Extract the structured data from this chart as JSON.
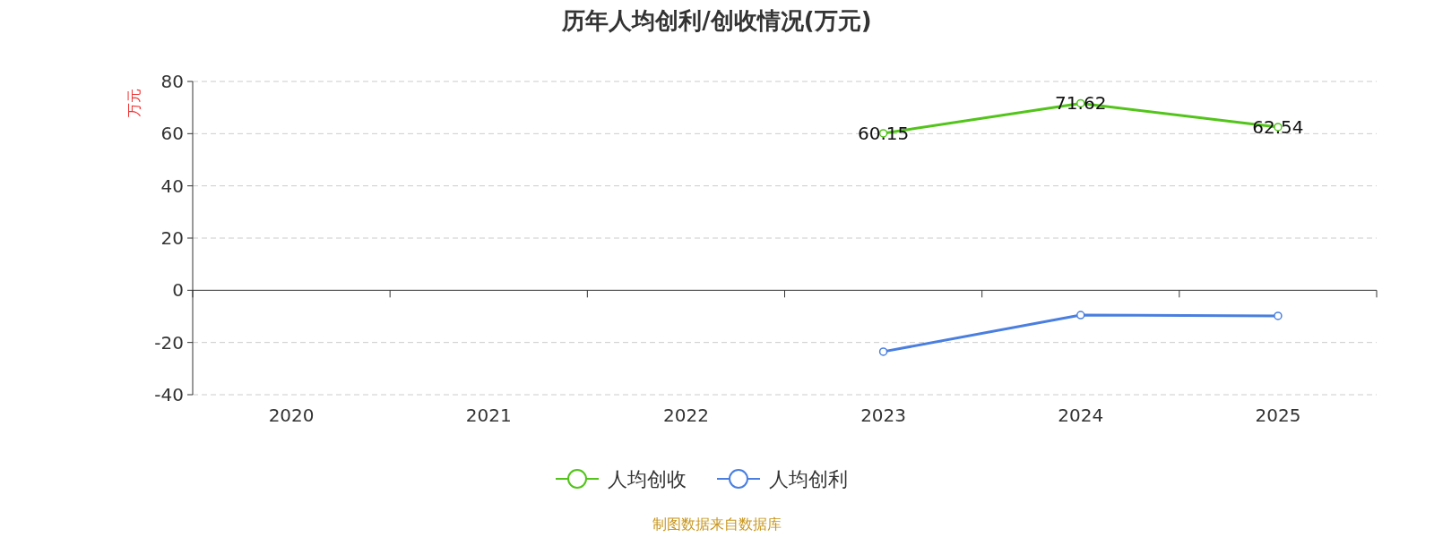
{
  "chart_data": {
    "type": "line",
    "title": "历年人均创利/创收情况(万元)",
    "ylabel": "万元",
    "categories": [
      "2020",
      "2021",
      "2022",
      "2023",
      "2024",
      "2025"
    ],
    "series": [
      {
        "name": "人均创收",
        "color": "#52c41a",
        "values": [
          null,
          null,
          null,
          60.15,
          71.62,
          62.54
        ],
        "value_labels": [
          null,
          null,
          null,
          "60.15",
          "71.62",
          "62.54"
        ]
      },
      {
        "name": "人均创利",
        "color": "#4a7fdf",
        "values": [
          null,
          null,
          null,
          -23.5,
          -9.5,
          -9.8
        ]
      }
    ],
    "ylim": [
      -40,
      80
    ],
    "yticks": [
      -40,
      -20,
      0,
      20,
      40,
      60,
      80
    ],
    "grid": "y",
    "legend": "bottom",
    "marker": "circle",
    "annotations": [
      "制图数据来自数据库"
    ]
  }
}
